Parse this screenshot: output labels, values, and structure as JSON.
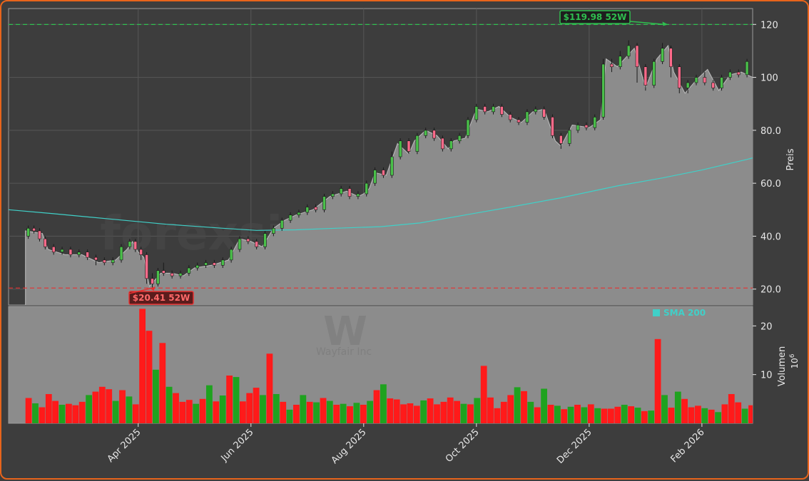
{
  "chart_data": {
    "type": "candlestick",
    "watermark": "forexsignale.trade",
    "logo_letter": "W",
    "logo_caption": "Wayfair Inc",
    "price_axis_label": "Preis",
    "volume_axis_label": "Volumen",
    "volume_unit": "10",
    "volume_unit_exp": "6",
    "price_ylim": [
      14,
      126
    ],
    "price_ticks": [
      "20.0",
      "40.0",
      "60.0",
      "80.0",
      "100",
      "120"
    ],
    "volume_ylim": [
      0,
      24
    ],
    "volume_ticks": [
      "10",
      "20"
    ],
    "x_ticks": [
      "Apr 2025",
      "Jun 2025",
      "Aug 2025",
      "Oct 2025",
      "Dec 2025",
      "Feb 2026"
    ],
    "x_ticks_month_index": [
      2,
      4,
      6,
      8,
      10,
      12
    ],
    "x_range_months": [
      -0.3,
      12.9
    ],
    "legend": "SMA 200",
    "high_52w": {
      "value": 119.98,
      "label": "$119.98 52W",
      "month_index": 11.4
    },
    "low_52w": {
      "value": 20.41,
      "label": "$20.41 52W",
      "month_index": 2.2
    },
    "colors": {
      "up": "#1fa21f",
      "down": "#ff1a1a",
      "sma": "#40d0c8",
      "high": "#2fbf4f",
      "low": "#e83030",
      "area": "#8c8c8c",
      "panel": "#3d3d3d"
    },
    "price_path": [
      [
        0,
        42
      ],
      [
        0.3,
        41
      ],
      [
        0.4,
        35
      ],
      [
        0.7,
        33
      ],
      [
        1.0,
        33
      ],
      [
        1.3,
        30
      ],
      [
        1.6,
        31
      ],
      [
        1.8,
        35
      ],
      [
        1.9,
        38
      ],
      [
        2.0,
        34
      ],
      [
        2.1,
        32
      ],
      [
        2.2,
        21
      ],
      [
        2.4,
        26
      ],
      [
        2.6,
        26
      ],
      [
        2.8,
        25
      ],
      [
        3.0,
        28
      ],
      [
        3.3,
        29
      ],
      [
        3.6,
        31
      ],
      [
        3.8,
        39
      ],
      [
        4.0,
        38
      ],
      [
        4.2,
        36
      ],
      [
        4.4,
        43
      ],
      [
        4.6,
        46
      ],
      [
        4.8,
        48
      ],
      [
        5.1,
        50
      ],
      [
        5.4,
        55
      ],
      [
        5.7,
        57
      ],
      [
        5.9,
        55
      ],
      [
        6.0,
        56
      ],
      [
        6.1,
        58
      ],
      [
        6.2,
        64
      ],
      [
        6.4,
        63
      ],
      [
        6.6,
        75
      ],
      [
        6.8,
        71
      ],
      [
        6.9,
        76
      ],
      [
        7.1,
        80
      ],
      [
        7.3,
        78
      ],
      [
        7.5,
        73
      ],
      [
        7.6,
        76
      ],
      [
        7.8,
        77
      ],
      [
        8.0,
        88
      ],
      [
        8.2,
        87
      ],
      [
        8.4,
        89
      ],
      [
        8.6,
        85
      ],
      [
        8.8,
        83
      ],
      [
        9.0,
        87
      ],
      [
        9.2,
        88
      ],
      [
        9.3,
        82
      ],
      [
        9.4,
        76
      ],
      [
        9.5,
        74
      ],
      [
        9.7,
        82
      ],
      [
        10.0,
        81
      ],
      [
        10.2,
        84
      ],
      [
        10.3,
        107
      ],
      [
        10.5,
        104
      ],
      [
        10.8,
        111
      ],
      [
        11.0,
        96
      ],
      [
        11.2,
        107
      ],
      [
        11.4,
        112
      ],
      [
        11.5,
        102
      ],
      [
        11.7,
        94
      ],
      [
        11.9,
        99
      ],
      [
        12.1,
        103
      ],
      [
        12.3,
        95
      ],
      [
        12.5,
        101
      ],
      [
        12.7,
        102
      ],
      [
        12.9,
        100
      ],
      [
        13.0,
        108
      ],
      [
        13.2,
        104
      ],
      [
        13.4,
        112
      ],
      [
        13.6,
        119
      ],
      [
        13.8,
        104
      ],
      [
        14.0,
        110
      ],
      [
        14.2,
        101
      ],
      [
        14.4,
        92
      ],
      [
        14.5,
        84
      ],
      [
        14.6,
        92
      ],
      [
        14.8,
        88
      ],
      [
        14.9,
        82
      ],
      [
        15.0,
        77
      ],
      [
        15.1,
        73
      ],
      [
        15.2,
        73
      ]
    ],
    "sma_path": [
      [
        -0.3,
        50
      ],
      [
        0.5,
        48.5
      ],
      [
        1.5,
        46.5
      ],
      [
        2.5,
        44.5
      ],
      [
        3.5,
        43
      ],
      [
        4.1,
        42.2
      ],
      [
        4.8,
        42.4
      ],
      [
        5.5,
        43
      ],
      [
        6.3,
        43.6
      ],
      [
        7.0,
        45
      ],
      [
        7.8,
        48
      ],
      [
        8.6,
        51
      ],
      [
        9.5,
        54.5
      ],
      [
        10.5,
        59
      ],
      [
        11.3,
        62
      ],
      [
        12.0,
        65
      ],
      [
        12.8,
        69
      ],
      [
        13.5,
        73
      ],
      [
        14.2,
        77
      ],
      [
        14.6,
        79
      ]
    ],
    "volume_bars": [
      5.2,
      4.1,
      3.3,
      6.0,
      4.6,
      3.8,
      4.0,
      3.7,
      4.4,
      5.8,
      6.5,
      7.5,
      7.0,
      4.6,
      6.8,
      5.5,
      3.9,
      23.5,
      19.0,
      11.0,
      16.5,
      7.5,
      6.2,
      4.4,
      4.8,
      4.0,
      5.0,
      7.8,
      4.5,
      5.7,
      9.8,
      9.5,
      4.5,
      6.2,
      7.3,
      5.8,
      14.3,
      6.0,
      4.4,
      2.8,
      3.8,
      5.8,
      4.4,
      4.3,
      5.2,
      4.6,
      3.8,
      4.0,
      3.5,
      4.2,
      3.8,
      4.6,
      6.8,
      8.0,
      5.1,
      4.9,
      3.9,
      4.1,
      3.6,
      4.7,
      5.1,
      3.9,
      4.4,
      5.3,
      4.6,
      4.0,
      3.9,
      5.2,
      11.8,
      5.3,
      3.1,
      4.4,
      5.8,
      7.4,
      6.6,
      4.4,
      3.3,
      7.1,
      3.8,
      3.6,
      2.9,
      3.4,
      3.8,
      3.3,
      3.9,
      3.1,
      3.0,
      3.0,
      3.4,
      3.8,
      3.5,
      3.2,
      2.5,
      2.6,
      17.3,
      5.8,
      3.2,
      6.5,
      5.0,
      3.3,
      3.6,
      3.1,
      2.8,
      2.3,
      3.9,
      6.0,
      4.3,
      3.0,
      3.7,
      4.2,
      3.2,
      3.3,
      2.0,
      2.7,
      3.1,
      3.5,
      3.2,
      2.8,
      3.0,
      9.5,
      4.5,
      5.0,
      4.2,
      3.8,
      6.0,
      11.5,
      8.8,
      6.0
    ],
    "candles": [
      [
        0.05,
        40,
        43,
        39,
        44
      ],
      [
        0.15,
        43,
        42,
        41,
        44
      ],
      [
        0.25,
        42,
        39,
        38,
        43
      ],
      [
        0.35,
        39,
        36,
        35,
        40
      ],
      [
        0.5,
        36,
        34,
        33,
        37
      ],
      [
        0.65,
        34,
        35,
        33,
        36
      ],
      [
        0.8,
        35,
        33,
        32,
        36
      ],
      [
        0.95,
        33,
        34,
        32,
        35
      ],
      [
        1.1,
        34,
        32,
        31,
        35
      ],
      [
        1.25,
        32,
        31,
        29,
        33
      ],
      [
        1.4,
        31,
        30,
        29,
        32
      ],
      [
        1.55,
        30,
        31,
        29,
        32
      ],
      [
        1.7,
        31,
        36,
        30,
        37
      ],
      [
        1.85,
        36,
        38,
        35,
        39
      ],
      [
        1.95,
        38,
        35,
        34,
        39
      ],
      [
        2.05,
        35,
        33,
        31,
        36
      ],
      [
        2.15,
        33,
        24,
        22,
        34
      ],
      [
        2.25,
        24,
        22,
        20.4,
        26
      ],
      [
        2.35,
        22,
        27,
        21,
        28
      ],
      [
        2.45,
        27,
        26,
        25,
        30
      ],
      [
        2.6,
        26,
        25,
        24,
        27
      ],
      [
        2.75,
        25,
        26,
        24,
        27
      ],
      [
        2.9,
        26,
        28,
        25,
        29
      ],
      [
        3.05,
        28,
        29,
        27,
        30
      ],
      [
        3.2,
        29,
        30,
        28,
        31
      ],
      [
        3.35,
        30,
        29,
        28,
        31
      ],
      [
        3.5,
        29,
        31,
        28,
        32
      ],
      [
        3.65,
        31,
        35,
        30,
        36
      ],
      [
        3.8,
        35,
        39,
        34,
        40
      ],
      [
        3.95,
        39,
        38,
        37,
        40
      ],
      [
        4.1,
        38,
        36,
        35,
        39
      ],
      [
        4.25,
        36,
        41,
        35,
        42
      ],
      [
        4.4,
        41,
        43,
        40,
        44
      ],
      [
        4.55,
        43,
        46,
        42,
        47
      ],
      [
        4.7,
        46,
        48,
        45,
        49
      ],
      [
        4.85,
        48,
        49,
        47,
        50
      ],
      [
        5.0,
        49,
        51,
        48,
        52
      ],
      [
        5.15,
        51,
        50,
        49,
        52
      ],
      [
        5.3,
        50,
        55,
        49,
        56
      ],
      [
        5.45,
        55,
        56,
        54,
        57
      ],
      [
        5.6,
        56,
        58,
        55,
        59
      ],
      [
        5.75,
        58,
        55,
        54,
        59
      ],
      [
        5.9,
        55,
        56,
        54,
        57
      ],
      [
        6.05,
        56,
        60,
        55,
        61
      ],
      [
        6.2,
        60,
        65,
        59,
        66
      ],
      [
        6.35,
        65,
        63,
        62,
        66
      ],
      [
        6.5,
        63,
        70,
        62,
        72
      ],
      [
        6.65,
        70,
        76,
        69,
        77
      ],
      [
        6.8,
        76,
        72,
        71,
        77
      ],
      [
        6.95,
        72,
        78,
        71,
        79
      ],
      [
        7.1,
        78,
        80,
        77,
        81
      ],
      [
        7.25,
        80,
        77,
        76,
        81
      ],
      [
        7.4,
        77,
        73,
        72,
        78
      ],
      [
        7.55,
        73,
        76,
        72,
        77
      ],
      [
        7.7,
        76,
        78,
        75,
        79
      ],
      [
        7.85,
        78,
        84,
        77,
        85
      ],
      [
        8.0,
        84,
        89,
        83,
        90
      ],
      [
        8.15,
        89,
        87,
        86,
        90
      ],
      [
        8.3,
        87,
        89,
        86,
        90
      ],
      [
        8.45,
        89,
        86,
        85,
        90
      ],
      [
        8.6,
        86,
        84,
        83,
        87
      ],
      [
        8.75,
        84,
        83,
        82,
        85
      ],
      [
        8.9,
        83,
        87,
        82,
        88
      ],
      [
        9.05,
        87,
        88,
        86,
        89
      ],
      [
        9.2,
        88,
        85,
        84,
        89
      ],
      [
        9.35,
        85,
        78,
        77,
        86
      ],
      [
        9.5,
        78,
        75,
        73,
        79
      ],
      [
        9.65,
        75,
        80,
        74,
        81
      ],
      [
        9.8,
        80,
        82,
        79,
        83
      ],
      [
        9.95,
        82,
        81,
        80,
        83
      ],
      [
        10.1,
        81,
        85,
        80,
        86
      ],
      [
        10.25,
        85,
        105,
        84,
        107
      ],
      [
        10.4,
        105,
        104,
        102,
        107
      ],
      [
        10.55,
        104,
        108,
        103,
        110
      ],
      [
        10.7,
        108,
        112,
        107,
        114
      ],
      [
        10.85,
        112,
        104,
        98,
        113
      ],
      [
        11.0,
        104,
        97,
        95,
        105
      ],
      [
        11.15,
        97,
        106,
        96,
        107
      ],
      [
        11.3,
        106,
        111,
        105,
        113
      ],
      [
        11.45,
        111,
        104,
        100,
        112
      ],
      [
        11.6,
        104,
        96,
        94,
        105
      ],
      [
        11.75,
        96,
        98,
        94,
        99
      ],
      [
        11.9,
        98,
        100,
        97,
        101
      ],
      [
        12.05,
        100,
        98,
        97,
        102
      ],
      [
        12.2,
        98,
        96,
        95,
        99
      ],
      [
        12.35,
        96,
        100,
        95,
        101
      ],
      [
        12.5,
        100,
        102,
        99,
        103
      ],
      [
        12.65,
        102,
        101,
        100,
        103
      ],
      [
        12.8,
        101,
        106,
        100,
        107
      ],
      [
        12.95,
        106,
        110,
        105,
        111
      ],
      [
        13.1,
        110,
        106,
        104,
        111
      ],
      [
        13.25,
        106,
        112,
        105,
        114
      ],
      [
        13.4,
        112,
        118,
        111,
        120
      ],
      [
        13.55,
        118,
        113,
        108,
        119
      ],
      [
        13.7,
        113,
        108,
        104,
        114
      ],
      [
        13.85,
        108,
        110,
        107,
        111
      ],
      [
        14.0,
        110,
        104,
        102,
        111
      ],
      [
        14.15,
        104,
        97,
        95,
        105
      ],
      [
        14.3,
        97,
        91,
        90,
        98
      ],
      [
        14.45,
        91,
        85,
        83,
        92
      ],
      [
        14.55,
        85,
        91,
        84,
        93
      ],
      [
        14.65,
        91,
        87,
        86,
        92
      ],
      [
        14.8,
        87,
        84,
        82,
        90
      ],
      [
        14.9,
        84,
        78,
        76,
        85
      ],
      [
        15.0,
        78,
        73,
        72,
        81
      ]
    ]
  }
}
